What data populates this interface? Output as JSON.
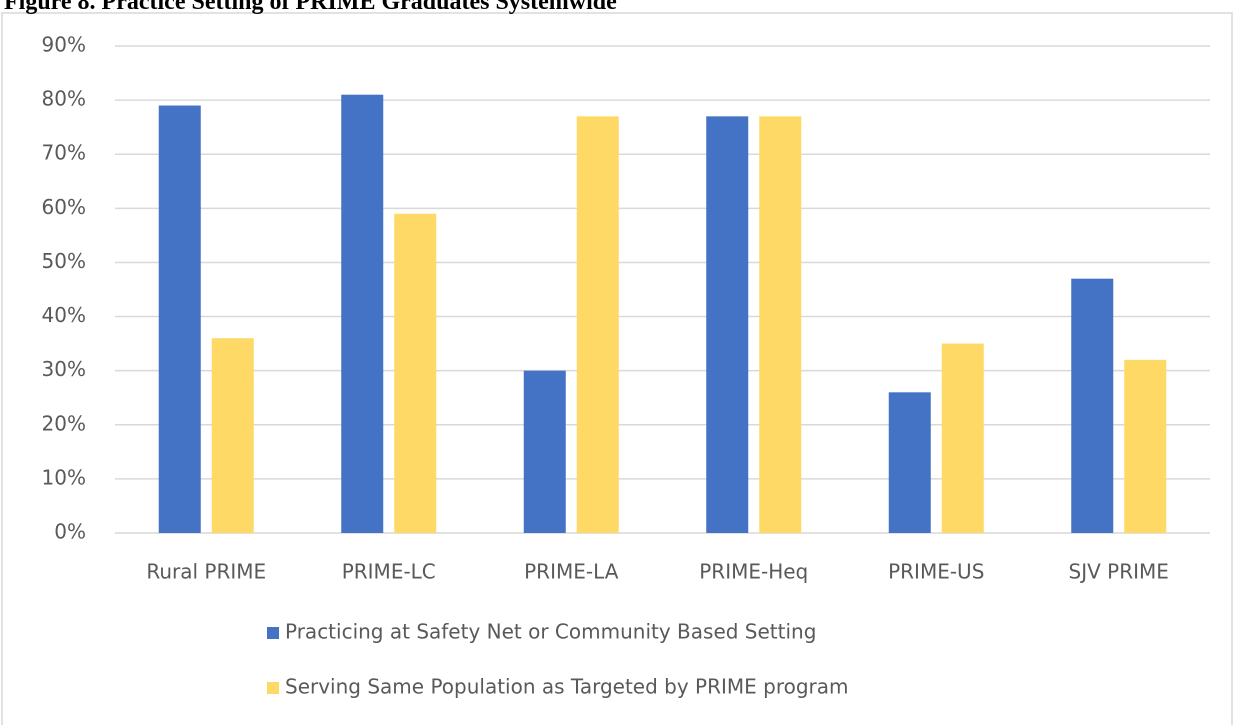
{
  "chart_data": {
    "type": "bar",
    "title": "Figure 8. Practice Setting of PRIME Graduates Systemwide",
    "categories": [
      "Rural PRIME",
      "PRIME-LC",
      "PRIME-LA",
      "PRIME-Heq",
      "PRIME-US",
      "SJV PRIME"
    ],
    "series": [
      {
        "name": "Practicing at Safety Net or Community Based Setting",
        "color": "#4472c4",
        "values": [
          79,
          81,
          30,
          77,
          26,
          47
        ]
      },
      {
        "name": "Serving Same Population as Targeted by PRIME program",
        "color": "#ffd966",
        "values": [
          36,
          59,
          77,
          77,
          35,
          32
        ]
      }
    ],
    "ylim": [
      0,
      90
    ],
    "yticks": [
      {
        "value": 0,
        "label": "0%"
      },
      {
        "value": 10,
        "label": "10%"
      },
      {
        "value": 20,
        "label": "20%"
      },
      {
        "value": 30,
        "label": "30%"
      },
      {
        "value": 40,
        "label": "40%"
      },
      {
        "value": 50,
        "label": "50%"
      },
      {
        "value": 60,
        "label": "60%"
      },
      {
        "value": 70,
        "label": "70%"
      },
      {
        "value": 80,
        "label": "80%"
      },
      {
        "value": 90,
        "label": "90%"
      }
    ],
    "grid": true,
    "legend": "bottom"
  }
}
